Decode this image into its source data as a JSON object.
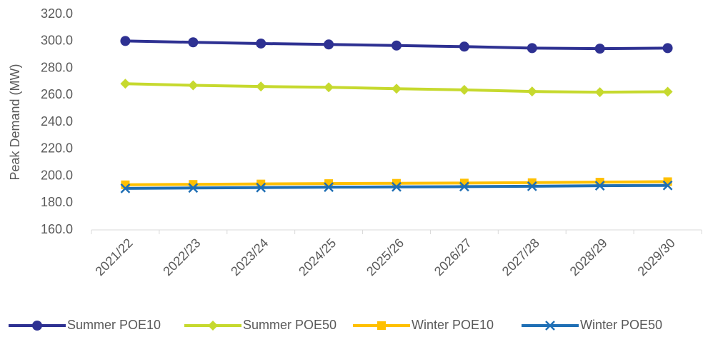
{
  "chart_data": {
    "type": "line",
    "y_label": "Peak Demand (MW)",
    "categories": [
      "2021/22",
      "2022/23",
      "2023/24",
      "2024/25",
      "2025/26",
      "2026/27",
      "2027/28",
      "2028/29",
      "2029/30"
    ],
    "series": [
      {
        "name": "Summer POE10",
        "color": "#2e3192",
        "marker": "circle",
        "values": [
          300.2,
          299.2,
          298.3,
          297.6,
          296.8,
          296.0,
          294.9,
          294.5,
          294.9
        ]
      },
      {
        "name": "Summer POE50",
        "color": "#c6d92e",
        "marker": "diamond",
        "values": [
          268.5,
          267.3,
          266.4,
          265.8,
          264.8,
          263.9,
          262.7,
          262.2,
          262.5
        ]
      },
      {
        "name": "Winter POE10",
        "color": "#ffc000",
        "marker": "square",
        "values": [
          193.5,
          193.8,
          194.1,
          194.4,
          194.6,
          194.8,
          195.1,
          195.5,
          195.8
        ]
      },
      {
        "name": "Winter POE50",
        "color": "#1f6fb5",
        "marker": "x",
        "values": [
          190.8,
          191.1,
          191.4,
          191.7,
          191.9,
          192.1,
          192.4,
          192.8,
          193.0
        ]
      }
    ],
    "ylim": [
      160,
      320
    ],
    "yticks": [
      {
        "value": 160,
        "label": "160.0"
      },
      {
        "value": 180,
        "label": "180.0"
      },
      {
        "value": 200,
        "label": "200.0"
      },
      {
        "value": 220,
        "label": "220.0"
      },
      {
        "value": 240,
        "label": "240.0"
      },
      {
        "value": 260,
        "label": "260.0"
      },
      {
        "value": 280,
        "label": "280.0"
      },
      {
        "value": 300,
        "label": "300.0"
      },
      {
        "value": 320,
        "label": "320.0"
      }
    ],
    "grid": false,
    "legend": "bottom"
  }
}
